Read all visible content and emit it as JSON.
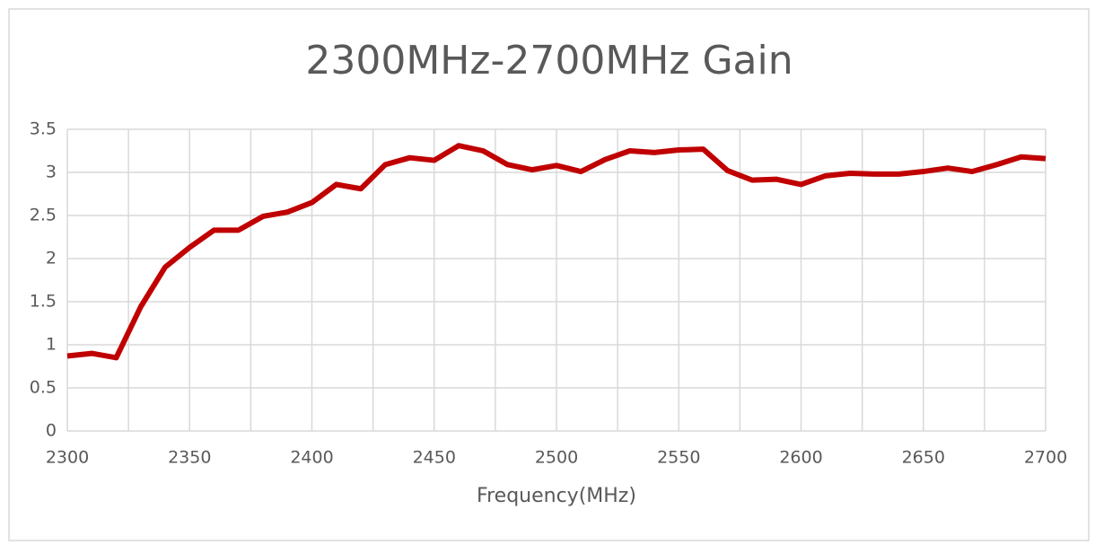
{
  "chart_data": {
    "type": "line",
    "title": "2300MHz-2700MHz Gain",
    "x_label": "Frequency(MHz)",
    "x": [
      2300,
      2310,
      2320,
      2330,
      2340,
      2350,
      2360,
      2370,
      2380,
      2390,
      2400,
      2410,
      2420,
      2430,
      2440,
      2450,
      2460,
      2470,
      2480,
      2490,
      2500,
      2510,
      2520,
      2530,
      2540,
      2550,
      2560,
      2570,
      2580,
      2590,
      2600,
      2610,
      2620,
      2630,
      2640,
      2650,
      2660,
      2670,
      2680,
      2690,
      2700
    ],
    "values": [
      0.87,
      0.9,
      0.85,
      1.44,
      1.9,
      2.13,
      2.33,
      2.33,
      2.49,
      2.54,
      2.65,
      2.86,
      2.81,
      3.09,
      3.17,
      3.14,
      3.31,
      3.25,
      3.09,
      3.03,
      3.08,
      3.01,
      3.15,
      3.25,
      3.23,
      3.26,
      3.27,
      3.02,
      2.91,
      2.92,
      2.86,
      2.96,
      2.99,
      2.98,
      2.98,
      3.01,
      3.05,
      3.01,
      3.09,
      3.18,
      3.16
    ],
    "color": "#c00000",
    "xlim": [
      2300,
      2700
    ],
    "xticks": [
      2300,
      2350,
      2400,
      2450,
      2500,
      2550,
      2600,
      2650,
      2700
    ],
    "xminor_ticks": [
      2325,
      2375,
      2425,
      2475,
      2525,
      2575,
      2625,
      2675
    ],
    "ylim": [
      0,
      3.5
    ],
    "yticks": [
      0,
      0.5,
      1,
      1.5,
      2,
      2.5,
      3,
      3.5
    ],
    "grid": true
  }
}
